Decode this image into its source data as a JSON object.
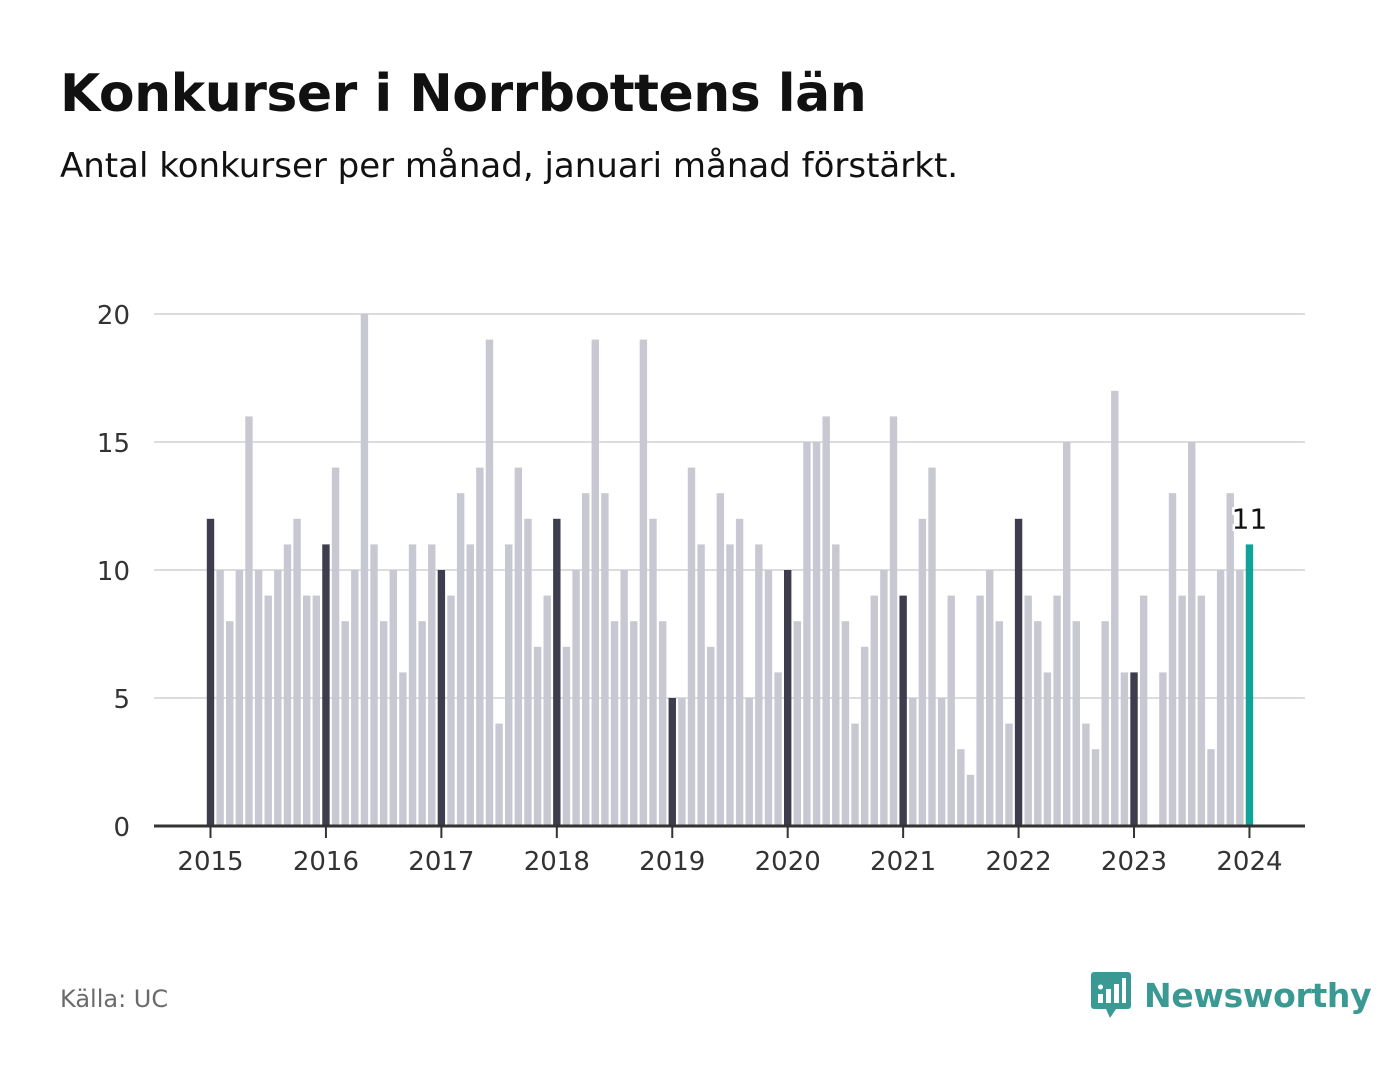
{
  "title": "Konkurser i Norrbottens län",
  "subtitle": "Antal konkurser per månad, januari månad förstärkt.",
  "source": "Källa: UC",
  "brand": {
    "name": "Newsworthy",
    "icon": "bar-chart-bubble-icon"
  },
  "colors": {
    "bar": "#c8c8d2",
    "january": "#3d3d4d",
    "latest": "#0fa39a",
    "grid": "#dcdce0",
    "axis": "#333333",
    "brand": "#3a9a93"
  },
  "chart_data": {
    "type": "bar",
    "title": "Konkurser i Norrbottens län",
    "subtitle": "Antal konkurser per månad, januari månad förstärkt.",
    "xlabel": "",
    "ylabel": "",
    "ylim": [
      0,
      20
    ],
    "yticks": [
      0,
      5,
      10,
      15,
      20
    ],
    "xticks": [
      "2015",
      "2016",
      "2017",
      "2018",
      "2019",
      "2020",
      "2021",
      "2022",
      "2023",
      "2024"
    ],
    "grid": true,
    "start": "2015-01",
    "end": "2024-01",
    "latest_label": "11",
    "series": [
      {
        "values": [
          12,
          10,
          8,
          10,
          16,
          10,
          9,
          10,
          11,
          12,
          9,
          9,
          11,
          14,
          8,
          10,
          20,
          11,
          8,
          10,
          6,
          11,
          8,
          11,
          10,
          9,
          13,
          11,
          14,
          19,
          4,
          11,
          14,
          12,
          7,
          9,
          12,
          7,
          10,
          13,
          19,
          13,
          8,
          10,
          8,
          19,
          12,
          8,
          5,
          5,
          14,
          11,
          7,
          13,
          11,
          12,
          5,
          11,
          10,
          6,
          10,
          8,
          15,
          15,
          16,
          11,
          8,
          4,
          7,
          9,
          10,
          16,
          9,
          5,
          12,
          14,
          5,
          9,
          3,
          2,
          9,
          10,
          8,
          4,
          12,
          9,
          8,
          6,
          9,
          15,
          8,
          4,
          3,
          8,
          17,
          6,
          6,
          9,
          0,
          6,
          13,
          9,
          15,
          9,
          3,
          10,
          13,
          10,
          11
        ]
      }
    ]
  }
}
